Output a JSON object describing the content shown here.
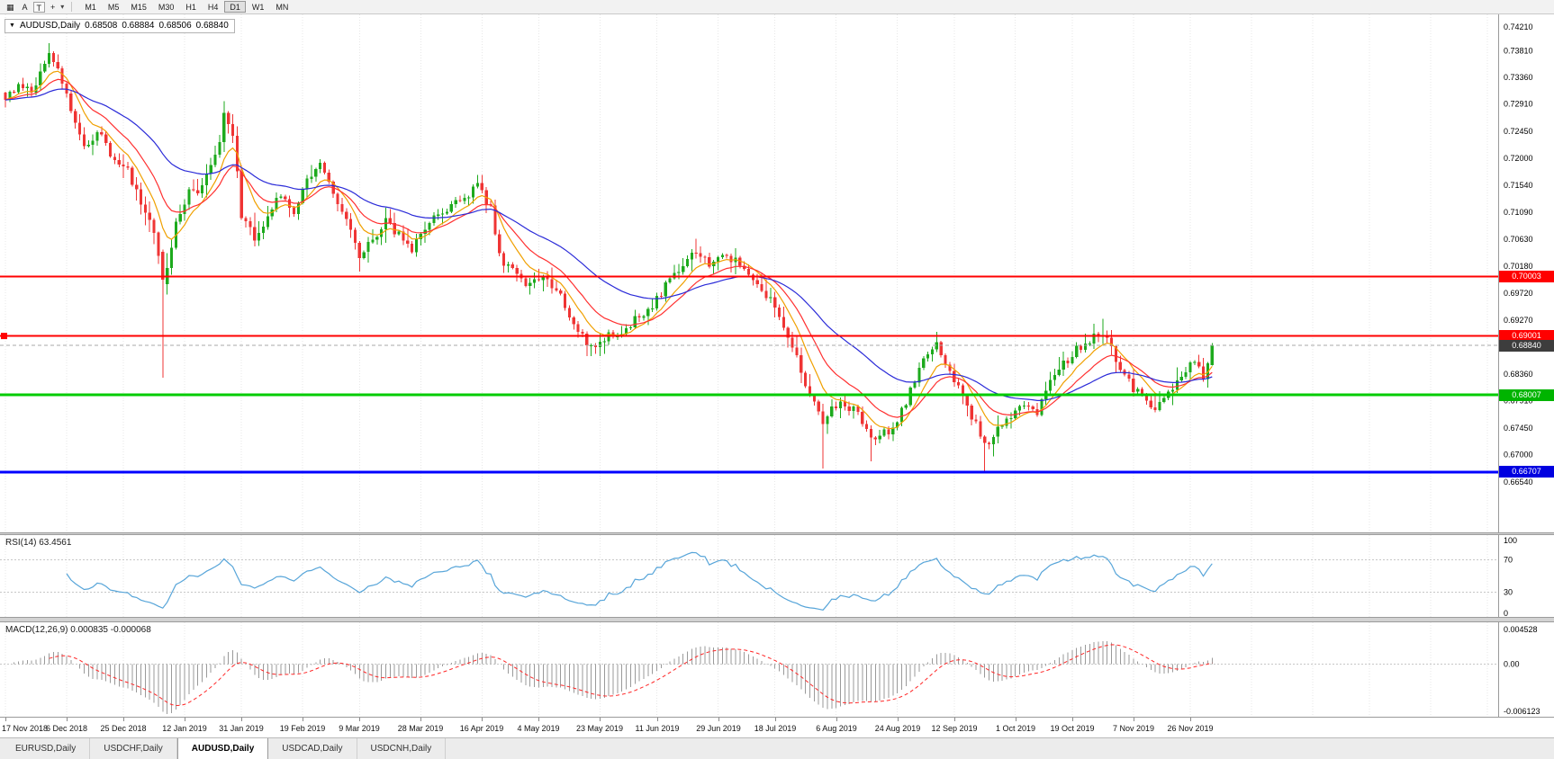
{
  "toolbar": {
    "chart_icon": "▦",
    "a_button": "A",
    "t_button": "T",
    "cursor_icon": "+",
    "caret_icon": "▾",
    "timeframes": [
      {
        "label": "M1",
        "active": false
      },
      {
        "label": "M5",
        "active": false
      },
      {
        "label": "M15",
        "active": false
      },
      {
        "label": "M30",
        "active": false
      },
      {
        "label": "H1",
        "active": false
      },
      {
        "label": "H4",
        "active": false
      },
      {
        "label": "D1",
        "active": true
      },
      {
        "label": "W1",
        "active": false
      },
      {
        "label": "MN",
        "active": false
      }
    ]
  },
  "chart_header": {
    "collapse_icon": "▼",
    "symbol": "AUDUSD,Daily",
    "open": "0.68508",
    "high": "0.68884",
    "low": "0.68506",
    "close": "0.68840"
  },
  "price_axis": {
    "labels": [
      "0.74210",
      "0.73810",
      "0.73360",
      "0.72910",
      "0.72450",
      "0.72000",
      "0.71540",
      "0.71090",
      "0.70630",
      "0.70180",
      "0.69720",
      "0.69270",
      "0.68810",
      "0.68360",
      "0.67910",
      "0.67450",
      "0.67000",
      "0.66540"
    ]
  },
  "levels": [
    {
      "name": "resistance-line-070003",
      "price": 0.70003,
      "label": "0.70003",
      "color": "#ff0000",
      "style": "solid",
      "width": 2,
      "badge_bg": "#ff0000",
      "handle": false
    },
    {
      "name": "resistance-line-069001",
      "price": 0.69001,
      "label": "0.69001",
      "color": "#ff0000",
      "style": "solid",
      "width": 2,
      "badge_bg": "#ff0000",
      "handle": true
    },
    {
      "name": "current-price-line",
      "price": 0.6884,
      "label": "0.68840",
      "color": "#aaaaaa",
      "style": "dash",
      "width": 1,
      "badge_bg": "#3d3d3d",
      "handle": false
    },
    {
      "name": "support-line-068007",
      "price": 0.68007,
      "label": "0.68007",
      "color": "#00cc00",
      "style": "solid",
      "width": 3,
      "badge_bg": "#00b400",
      "handle": false
    },
    {
      "name": "support-line-066707",
      "price": 0.66707,
      "label": "0.66707",
      "color": "#0000ff",
      "style": "solid",
      "width": 3,
      "badge_bg": "#0000e0",
      "handle": false
    }
  ],
  "rsi_panel": {
    "label": "RSI(14) 63.4561",
    "period": 14,
    "value": 63.4561,
    "scale": [
      "100",
      "70",
      "30",
      "0"
    ],
    "upper_level": 70,
    "lower_level": 30,
    "line_color": "#57a5d9"
  },
  "macd_panel": {
    "label": "MACD(12,26,9) 0.000835 -0.000068",
    "fast": 12,
    "slow": 26,
    "signal": 9,
    "value": 0.000835,
    "signal_value": -6.8e-05,
    "scale_top": "0.004528",
    "scale_zero": "0.00",
    "scale_bottom": "-0.006123",
    "histogram_color": "#9a9a9a",
    "signal_color": "#ff2626"
  },
  "date_axis": {
    "labels": [
      {
        "text": "17 Nov 2018",
        "day": 0
      },
      {
        "text": "6 Dec 2018",
        "day": 14
      },
      {
        "text": "25 Dec 2018",
        "day": 27
      },
      {
        "text": "12 Jan 2019",
        "day": 41
      },
      {
        "text": "31 Jan 2019",
        "day": 54
      },
      {
        "text": "19 Feb 2019",
        "day": 68
      },
      {
        "text": "9 Mar 2019",
        "day": 81
      },
      {
        "text": "28 Mar 2019",
        "day": 95
      },
      {
        "text": "16 Apr 2019",
        "day": 109
      },
      {
        "text": "4 May 2019",
        "day": 122
      },
      {
        "text": "23 May 2019",
        "day": 136
      },
      {
        "text": "11 Jun 2019",
        "day": 149
      },
      {
        "text": "29 Jun 2019",
        "day": 163
      },
      {
        "text": "18 Jul 2019",
        "day": 176
      },
      {
        "text": "6 Aug 2019",
        "day": 190
      },
      {
        "text": "24 Aug 2019",
        "day": 204
      },
      {
        "text": "12 Sep 2019",
        "day": 217
      },
      {
        "text": "1 Oct 2019",
        "day": 231
      },
      {
        "text": "19 Oct 2019",
        "day": 244
      },
      {
        "text": "7 Nov 2019",
        "day": 258
      },
      {
        "text": "26 Nov 2019",
        "day": 271
      }
    ]
  },
  "tabs": [
    {
      "label": "EURUSD,Daily",
      "active": false
    },
    {
      "label": "USDCHF,Daily",
      "active": false
    },
    {
      "label": "AUDUSD,Daily",
      "active": true
    },
    {
      "label": "USDCAD,Daily",
      "active": false
    },
    {
      "label": "USDCNH,Daily",
      "active": false
    }
  ],
  "chart_data": {
    "type": "candlestick",
    "symbol": "AUDUSD",
    "timeframe": "Daily",
    "visible_price_range": [
      0.6654,
      0.7421
    ],
    "current_ohlc": {
      "open": 0.68508,
      "high": 0.68884,
      "low": 0.68506,
      "close": 0.6884
    },
    "num_candles": 277,
    "close_anchors": [
      [
        0,
        0.7298
      ],
      [
        3,
        0.733
      ],
      [
        6,
        0.7312
      ],
      [
        10,
        0.7372
      ],
      [
        13,
        0.7332
      ],
      [
        16,
        0.7252
      ],
      [
        19,
        0.7215
      ],
      [
        22,
        0.7246
      ],
      [
        25,
        0.7192
      ],
      [
        28,
        0.718
      ],
      [
        31,
        0.713
      ],
      [
        34,
        0.7075
      ],
      [
        35,
        0.7042
      ],
      [
        36,
        0.6995
      ],
      [
        37,
        0.7012
      ],
      [
        39,
        0.709
      ],
      [
        42,
        0.714
      ],
      [
        45,
        0.715
      ],
      [
        48,
        0.7198
      ],
      [
        50,
        0.7268
      ],
      [
        52,
        0.7242
      ],
      [
        54,
        0.7102
      ],
      [
        57,
        0.7066
      ],
      [
        60,
        0.71
      ],
      [
        63,
        0.714
      ],
      [
        66,
        0.7112
      ],
      [
        69,
        0.7162
      ],
      [
        72,
        0.7188
      ],
      [
        75,
        0.7135
      ],
      [
        78,
        0.7092
      ],
      [
        81,
        0.7038
      ],
      [
        84,
        0.7062
      ],
      [
        87,
        0.7094
      ],
      [
        90,
        0.7072
      ],
      [
        93,
        0.7042
      ],
      [
        96,
        0.7086
      ],
      [
        100,
        0.711
      ],
      [
        104,
        0.7128
      ],
      [
        108,
        0.7152
      ],
      [
        111,
        0.7118
      ],
      [
        113,
        0.7032
      ],
      [
        116,
        0.7012
      ],
      [
        119,
        0.6992
      ],
      [
        122,
        0.7002
      ],
      [
        125,
        0.6986
      ],
      [
        128,
        0.6952
      ],
      [
        131,
        0.6912
      ],
      [
        134,
        0.6882
      ],
      [
        137,
        0.6896
      ],
      [
        140,
        0.6906
      ],
      [
        143,
        0.692
      ],
      [
        146,
        0.6936
      ],
      [
        149,
        0.6962
      ],
      [
        152,
        0.6996
      ],
      [
        155,
        0.7026
      ],
      [
        158,
        0.7048
      ],
      [
        161,
        0.7022
      ],
      [
        164,
        0.704
      ],
      [
        167,
        0.7024
      ],
      [
        170,
        0.7006
      ],
      [
        173,
        0.6982
      ],
      [
        176,
        0.6948
      ],
      [
        179,
        0.6902
      ],
      [
        182,
        0.684
      ],
      [
        184,
        0.6792
      ],
      [
        187,
        0.676
      ],
      [
        189,
        0.6776
      ],
      [
        192,
        0.6786
      ],
      [
        195,
        0.6768
      ],
      [
        198,
        0.6724
      ],
      [
        201,
        0.6736
      ],
      [
        204,
        0.6754
      ],
      [
        207,
        0.6806
      ],
      [
        210,
        0.6862
      ],
      [
        213,
        0.6884
      ],
      [
        216,
        0.6844
      ],
      [
        219,
        0.6794
      ],
      [
        222,
        0.6754
      ],
      [
        224,
        0.6716
      ],
      [
        227,
        0.674
      ],
      [
        230,
        0.6764
      ],
      [
        233,
        0.679
      ],
      [
        236,
        0.6774
      ],
      [
        239,
        0.6822
      ],
      [
        242,
        0.6854
      ],
      [
        245,
        0.6878
      ],
      [
        248,
        0.6894
      ],
      [
        251,
        0.6908
      ],
      [
        254,
        0.686
      ],
      [
        257,
        0.6824
      ],
      [
        260,
        0.6794
      ],
      [
        263,
        0.6774
      ],
      [
        266,
        0.6804
      ],
      [
        269,
        0.6834
      ],
      [
        272,
        0.6854
      ],
      [
        274,
        0.683
      ],
      [
        275,
        0.6851
      ],
      [
        276,
        0.6884
      ]
    ],
    "special_candles": [
      {
        "day": 10,
        "h": 0.7394
      },
      {
        "day": 36,
        "o": 0.7042,
        "h": 0.7046,
        "l": 0.683,
        "c": 0.6995
      },
      {
        "day": 50,
        "h": 0.7296
      },
      {
        "day": 109,
        "h": 0.7172
      },
      {
        "day": 134,
        "l": 0.6866
      },
      {
        "day": 158,
        "h": 0.7064
      },
      {
        "day": 187,
        "l": 0.6677
      },
      {
        "day": 198,
        "l": 0.6689
      },
      {
        "day": 224,
        "l": 0.6671
      },
      {
        "day": 251,
        "h": 0.6929
      },
      {
        "day": 276,
        "o": 0.68508,
        "h": 0.68884,
        "l": 0.68506,
        "c": 0.6884
      }
    ],
    "moving_averages": [
      {
        "period": 8,
        "color": "#f0a000"
      },
      {
        "period": 16,
        "color": "#ff3030"
      },
      {
        "period": 40,
        "color": "#2b2bd8"
      }
    ],
    "candle_colors": {
      "up": "#1daa1d",
      "down": "#ef3434"
    }
  }
}
